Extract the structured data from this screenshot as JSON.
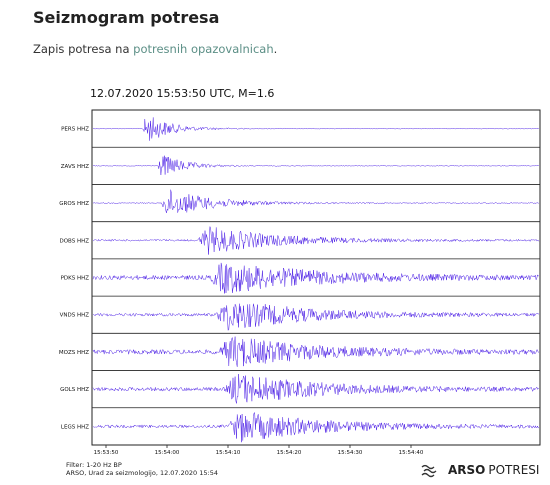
{
  "page": {
    "title": "Seizmogram potresa",
    "intro_text": "Zapis potresa na ",
    "intro_link": "potresnih opazovalnicah",
    "intro_end": "."
  },
  "seismogram": {
    "header": "12.07.2020  15:53:50 UTC, M=1.6",
    "trace_color": "#4b1ee6",
    "frame_color": "#222222"
  },
  "chart_data": {
    "type": "line",
    "title": "12.07.2020  15:53:50 UTC, M=1.6",
    "xlabel": "",
    "ylabel": "",
    "x_ticks": [
      "15:53:50",
      "15:54:00",
      "15:54:10",
      "15:54:20",
      "15:54:30",
      "15:54:40"
    ],
    "series": [
      {
        "name": "PERS HHZ",
        "onset_s": 6.0,
        "peak": 0.95,
        "duration_s": 12,
        "noise": 0.02
      },
      {
        "name": "ZAVS HHZ",
        "onset_s": 8.5,
        "peak": 0.75,
        "duration_s": 12,
        "noise": 0.02
      },
      {
        "name": "GROS HHZ",
        "onset_s": 9.0,
        "peak": 0.9,
        "duration_s": 22,
        "noise": 0.03
      },
      {
        "name": "DOBS HHZ",
        "onset_s": 15.0,
        "peak": 0.85,
        "duration_s": 35,
        "noise": 0.05
      },
      {
        "name": "PDKS HHZ",
        "onset_s": 17.0,
        "peak": 0.95,
        "duration_s": 45,
        "noise": 0.12
      },
      {
        "name": "VNDS HHZ",
        "onset_s": 18.0,
        "peak": 0.95,
        "duration_s": 40,
        "noise": 0.08
      },
      {
        "name": "MOZS HHZ",
        "onset_s": 18.5,
        "peak": 0.95,
        "duration_s": 40,
        "noise": 0.12
      },
      {
        "name": "GOLS HHZ",
        "onset_s": 19.5,
        "peak": 0.95,
        "duration_s": 40,
        "noise": 0.1
      },
      {
        "name": "LEGS HHZ",
        "onset_s": 20.0,
        "peak": 0.95,
        "duration_s": 40,
        "noise": 0.08
      }
    ]
  },
  "footer": {
    "filter": "Filter: 1-20 Hz BP",
    "source": "ARSO, Urad za seizmologijo, 12.07.2020  15:54"
  },
  "brand": {
    "name_bold": "ARSO",
    "name_light": "POTRESI",
    "icon": "arso-logo-icon"
  }
}
